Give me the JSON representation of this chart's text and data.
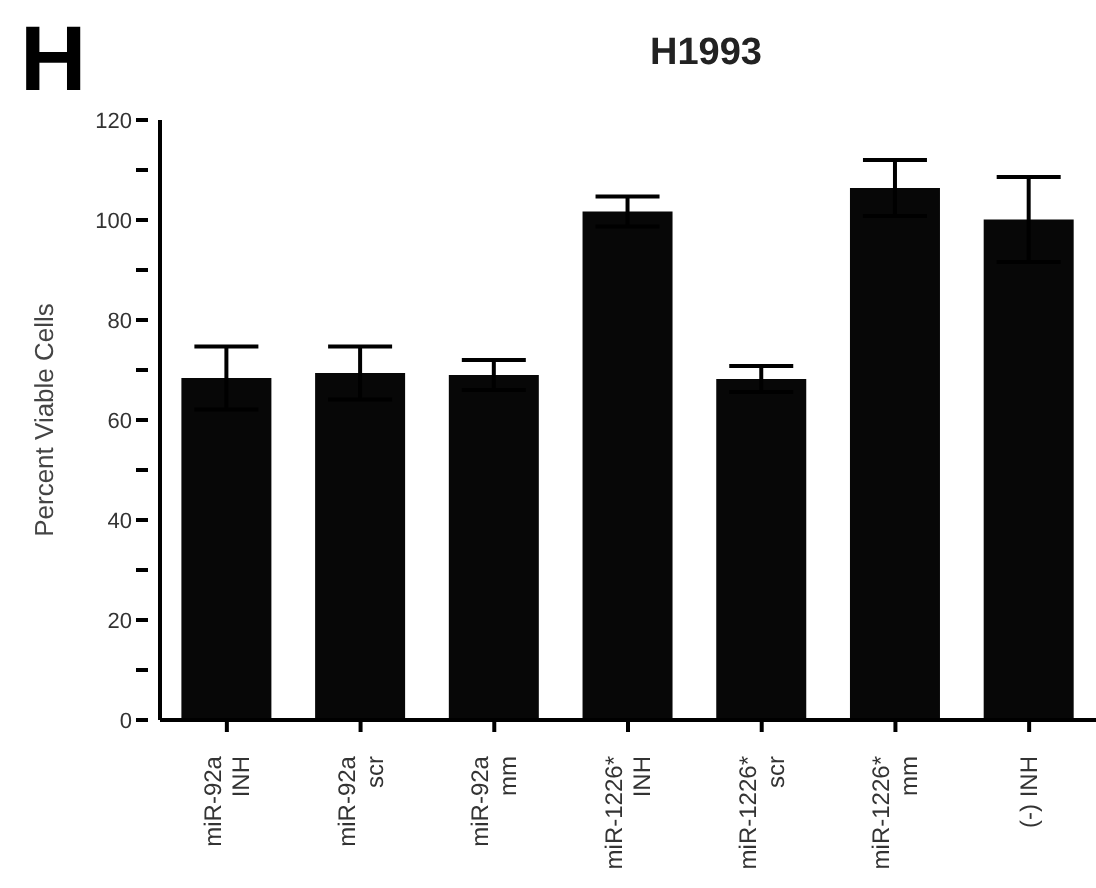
{
  "chart_data": {
    "type": "bar",
    "title": "H1993",
    "ylabel": "Percent Viable Cells",
    "annotations": [
      "H"
    ],
    "categories": [
      "miR-92a\nINH",
      "miR-92a\nscr",
      "miR-92a\nmm",
      "miR-1226*\nINH",
      "miR-1226*\nscr",
      "miR-1226*\nmm",
      "(-) INH"
    ],
    "values": [
      68.4,
      69.4,
      69.0,
      101.7,
      68.2,
      106.4,
      100.1
    ],
    "errors": [
      6.3,
      5.3,
      3.0,
      3.0,
      2.6,
      5.6,
      8.5
    ],
    "color": "#070707",
    "ylim": [
      0,
      120
    ],
    "yticks": [
      0,
      {
        "value": 10,
        "label": null
      },
      20,
      {
        "value": 30,
        "label": null
      },
      40,
      {
        "value": 50,
        "label": null
      },
      60,
      {
        "value": 70,
        "label": null
      },
      80,
      {
        "value": 90,
        "label": null
      },
      100,
      {
        "value": 110,
        "label": null
      },
      120
    ],
    "grid": false,
    "legend": false
  }
}
